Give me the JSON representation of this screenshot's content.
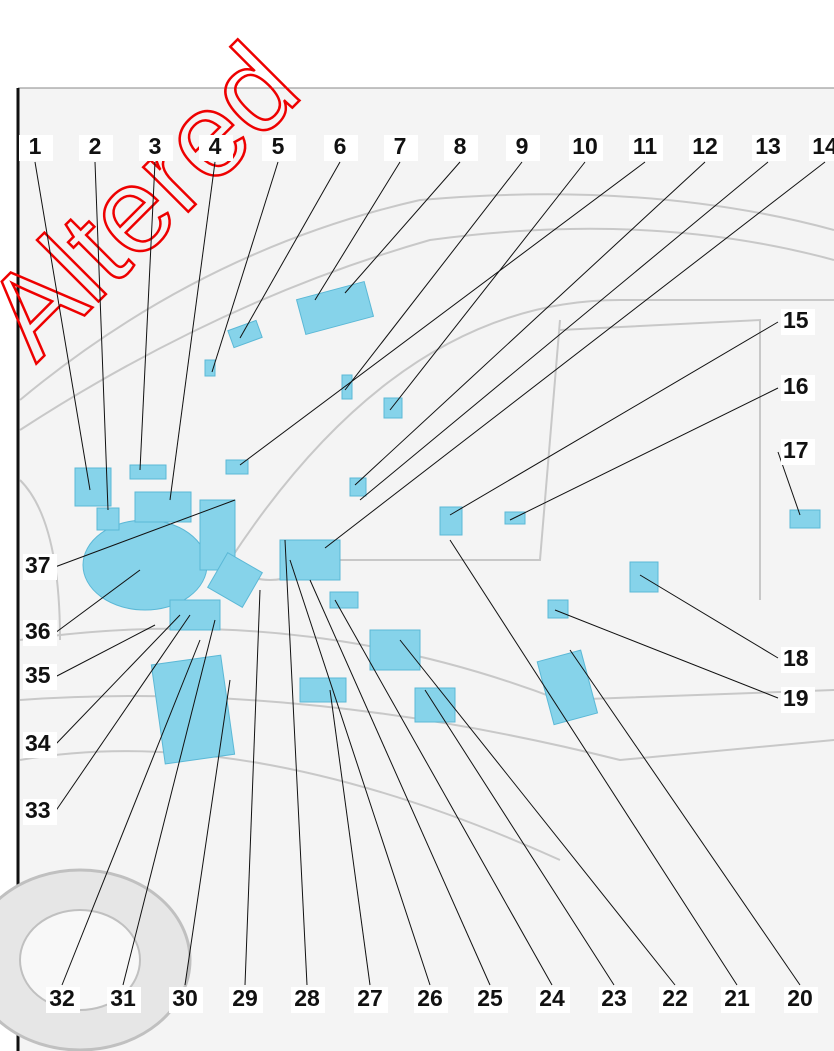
{
  "watermark": "Altered",
  "callouts": [
    1,
    2,
    3,
    4,
    5,
    6,
    7,
    8,
    9,
    10,
    11,
    12,
    13,
    14,
    15,
    16,
    17,
    18,
    19,
    20,
    21,
    22,
    23,
    24,
    25,
    26,
    27,
    28,
    29,
    30,
    31,
    32,
    33,
    34,
    35,
    36,
    37
  ]
}
